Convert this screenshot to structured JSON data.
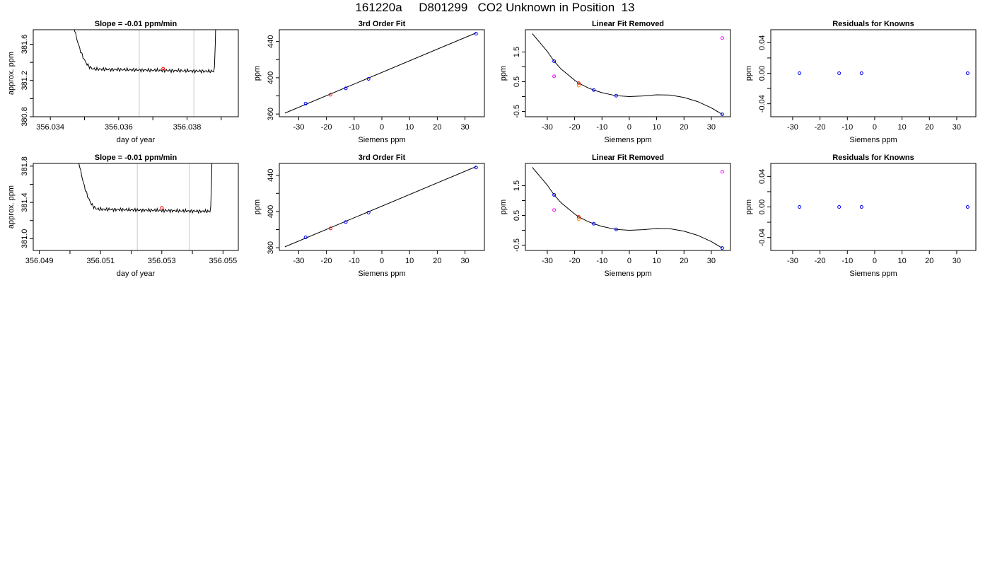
{
  "page_title": "161220a     D801299   CO2 Unknown in Position  13",
  "colors": {
    "trace": "#000000",
    "selected_point": "#ff0000",
    "fit_point": "#0000ff",
    "extra_a": "#ff00ff",
    "extra_b": "#ff8c00",
    "marker_line": "#c8c8c8"
  },
  "chart_data": [
    {
      "id": "r1-trace",
      "type": "line",
      "title": "Slope =  -0.01  ppm/min",
      "xlabel": "day of year",
      "ylabel": "approx. ppm",
      "xlim": [
        356.0335,
        356.0395
      ],
      "ylim": [
        380.8,
        381.76
      ],
      "xticks": [
        356.034,
        356.035,
        356.036,
        356.037,
        356.038,
        356.039
      ],
      "xticklabels": [
        "356.034",
        "",
        "356.036",
        "",
        "356.038",
        ""
      ],
      "yticks": [
        380.8,
        381.0,
        381.2,
        381.4,
        381.6
      ],
      "yticklabels": [
        "380.8",
        "",
        "381.2",
        "",
        "381.6"
      ],
      "level": 381.33,
      "trace_start": 356.03455,
      "trace_end": 356.03885,
      "vlines": [
        356.0366,
        356.0382
      ],
      "point": {
        "x": 356.0373,
        "y": 381.33
      }
    },
    {
      "id": "r1-fit",
      "type": "scatter",
      "title": "3rd Order Fit",
      "xlabel": "Siemens ppm",
      "ylabel": "ppm",
      "xlim": [
        -37,
        37
      ],
      "ylim": [
        357,
        453
      ],
      "xticks": [
        -30,
        -20,
        -10,
        0,
        10,
        20,
        30
      ],
      "xticklabels": [
        "-30",
        "-20",
        "-10",
        "0",
        "10",
        "20",
        "30"
      ],
      "yticks": [
        360,
        380,
        400,
        420,
        440
      ],
      "yticklabels": [
        "360",
        "",
        "400",
        "",
        "440"
      ],
      "line": [
        [
          -35,
          361.0
        ],
        [
          34,
          449.5
        ]
      ],
      "points": [
        {
          "x": -27.5,
          "y": 371.5,
          "c": "fit_point"
        },
        {
          "x": -18.5,
          "y": 381.3,
          "c": "selected_point"
        },
        {
          "x": -13.0,
          "y": 388.3,
          "c": "fit_point"
        },
        {
          "x": -4.8,
          "y": 398.8,
          "c": "fit_point"
        },
        {
          "x": 34.0,
          "y": 448.5,
          "c": "fit_point"
        }
      ]
    },
    {
      "id": "r1-lin",
      "type": "scatter",
      "title": "Linear Fit Removed",
      "xlabel": "Siemens ppm",
      "ylabel": "ppm",
      "xlim": [
        -38,
        37
      ],
      "ylim": [
        -0.68,
        2.25
      ],
      "xticks": [
        -30,
        -20,
        -10,
        0,
        10,
        20,
        30
      ],
      "xticklabels": [
        "-30",
        "-20",
        "-10",
        "0",
        "10",
        "20",
        "30"
      ],
      "yticks": [
        -0.5,
        0.0,
        0.5,
        1.0,
        1.5
      ],
      "yticklabels": [
        "-0.5",
        "",
        "0.5",
        "",
        "1.5"
      ],
      "curve": [
        [
          -35.5,
          2.12
        ],
        [
          -30,
          1.52
        ],
        [
          -27.5,
          1.19
        ],
        [
          -25,
          0.93
        ],
        [
          -20,
          0.55
        ],
        [
          -18.5,
          0.45
        ],
        [
          -15,
          0.29
        ],
        [
          -13,
          0.22
        ],
        [
          -10,
          0.13
        ],
        [
          -5,
          0.03
        ],
        [
          0,
          0.0
        ],
        [
          5,
          0.02
        ],
        [
          10,
          0.06
        ],
        [
          15,
          0.05
        ],
        [
          20,
          -0.03
        ],
        [
          25,
          -0.17
        ],
        [
          30,
          -0.38
        ],
        [
          34,
          -0.6
        ]
      ],
      "points": [
        {
          "x": -27.5,
          "y": 1.19,
          "c": "fit_point"
        },
        {
          "x": -27.5,
          "y": 0.68,
          "c": "extra_a"
        },
        {
          "x": -18.5,
          "y": 0.45,
          "c": "selected_point"
        },
        {
          "x": -18.5,
          "y": 0.37,
          "c": "extra_b"
        },
        {
          "x": -13.0,
          "y": 0.22,
          "c": "fit_point"
        },
        {
          "x": -4.8,
          "y": 0.03,
          "c": "fit_point"
        },
        {
          "x": 34.0,
          "y": 1.97,
          "c": "extra_a"
        },
        {
          "x": 34.0,
          "y": -0.6,
          "c": "fit_point"
        }
      ]
    },
    {
      "id": "r1-res",
      "type": "scatter",
      "title": "Residuals for Knowns",
      "xlabel": "Siemens ppm",
      "ylabel": "ppm",
      "xlim": [
        -38,
        37
      ],
      "ylim": [
        -0.057,
        0.057
      ],
      "xticks": [
        -30,
        -20,
        -10,
        0,
        10,
        20,
        30
      ],
      "xticklabels": [
        "-30",
        "-20",
        "-10",
        "0",
        "10",
        "20",
        "30"
      ],
      "yticks": [
        -0.04,
        -0.02,
        0.0,
        0.02,
        0.04
      ],
      "yticklabels": [
        "-0.04",
        "",
        "0.00",
        "",
        "0.04"
      ],
      "points": [
        {
          "x": -27.5,
          "y": 0.0,
          "c": "fit_point"
        },
        {
          "x": -13.0,
          "y": 0.0,
          "c": "fit_point"
        },
        {
          "x": -4.8,
          "y": 0.0,
          "c": "fit_point"
        },
        {
          "x": 34.0,
          "y": 0.0,
          "c": "fit_point"
        }
      ]
    },
    {
      "id": "r2-trace",
      "type": "line",
      "title": "Slope =  -0.01  ppm/min",
      "xlabel": "day of year",
      "ylabel": "approx. ppm",
      "xlim": [
        356.0488,
        356.0555
      ],
      "ylim": [
        380.87,
        381.83
      ],
      "xticks": [
        356.049,
        356.05,
        356.051,
        356.052,
        356.053,
        356.054,
        356.055
      ],
      "xticklabels": [
        "356.049",
        "",
        "356.051",
        "",
        "356.053",
        "",
        "356.055"
      ],
      "yticks": [
        381.0,
        381.2,
        381.4,
        381.6,
        381.8
      ],
      "yticklabels": [
        "381.0",
        "",
        "381.4",
        "",
        "381.8"
      ],
      "level": 381.33,
      "trace_start": 356.05015,
      "trace_end": 356.05465,
      "vlines": [
        356.0522,
        356.0539
      ],
      "point": {
        "x": 356.053,
        "y": 381.34
      }
    },
    {
      "id": "r2-fit",
      "type": "scatter",
      "title": "3rd Order Fit",
      "xlabel": "Siemens ppm",
      "ylabel": "ppm",
      "xlim": [
        -37,
        37
      ],
      "ylim": [
        357,
        453
      ],
      "xticks": [
        -30,
        -20,
        -10,
        0,
        10,
        20,
        30
      ],
      "xticklabels": [
        "-30",
        "-20",
        "-10",
        "0",
        "10",
        "20",
        "30"
      ],
      "yticks": [
        360,
        380,
        400,
        420,
        440
      ],
      "yticklabels": [
        "360",
        "",
        "400",
        "",
        "440"
      ],
      "line": [
        [
          -35,
          361.0
        ],
        [
          34,
          449.5
        ]
      ],
      "points": [
        {
          "x": -27.5,
          "y": 371.5,
          "c": "fit_point"
        },
        {
          "x": -18.5,
          "y": 381.3,
          "c": "selected_point"
        },
        {
          "x": -13.0,
          "y": 388.3,
          "c": "fit_point"
        },
        {
          "x": -4.8,
          "y": 398.8,
          "c": "fit_point"
        },
        {
          "x": 34.0,
          "y": 448.5,
          "c": "fit_point"
        }
      ]
    },
    {
      "id": "r2-lin",
      "type": "scatter",
      "title": "Linear Fit Removed",
      "xlabel": "Siemens ppm",
      "ylabel": "ppm",
      "xlim": [
        -38,
        37
      ],
      "ylim": [
        -0.68,
        2.25
      ],
      "xticks": [
        -30,
        -20,
        -10,
        0,
        10,
        20,
        30
      ],
      "xticklabels": [
        "-30",
        "-20",
        "-10",
        "0",
        "10",
        "20",
        "30"
      ],
      "yticks": [
        -0.5,
        0.0,
        0.5,
        1.0,
        1.5
      ],
      "yticklabels": [
        "-0.5",
        "",
        "0.5",
        "",
        "1.5"
      ],
      "curve": [
        [
          -35.5,
          2.12
        ],
        [
          -30,
          1.52
        ],
        [
          -27.5,
          1.19
        ],
        [
          -25,
          0.93
        ],
        [
          -20,
          0.55
        ],
        [
          -18.5,
          0.45
        ],
        [
          -15,
          0.29
        ],
        [
          -13,
          0.22
        ],
        [
          -10,
          0.13
        ],
        [
          -5,
          0.03
        ],
        [
          0,
          0.0
        ],
        [
          5,
          0.02
        ],
        [
          10,
          0.06
        ],
        [
          15,
          0.05
        ],
        [
          20,
          -0.03
        ],
        [
          25,
          -0.17
        ],
        [
          30,
          -0.38
        ],
        [
          34,
          -0.6
        ]
      ],
      "points": [
        {
          "x": -27.5,
          "y": 1.19,
          "c": "fit_point"
        },
        {
          "x": -27.5,
          "y": 0.68,
          "c": "extra_a"
        },
        {
          "x": -18.5,
          "y": 0.45,
          "c": "selected_point"
        },
        {
          "x": -18.5,
          "y": 0.37,
          "c": "extra_b"
        },
        {
          "x": -13.0,
          "y": 0.22,
          "c": "fit_point"
        },
        {
          "x": -4.8,
          "y": 0.03,
          "c": "fit_point"
        },
        {
          "x": 34.0,
          "y": 1.97,
          "c": "extra_a"
        },
        {
          "x": 34.0,
          "y": -0.6,
          "c": "fit_point"
        }
      ]
    },
    {
      "id": "r2-res",
      "type": "scatter",
      "title": "Residuals for Knowns",
      "xlabel": "Siemens ppm",
      "ylabel": "ppm",
      "xlim": [
        -38,
        37
      ],
      "ylim": [
        -0.057,
        0.057
      ],
      "xticks": [
        -30,
        -20,
        -10,
        0,
        10,
        20,
        30
      ],
      "xticklabels": [
        "-30",
        "-20",
        "-10",
        "0",
        "10",
        "20",
        "30"
      ],
      "yticks": [
        -0.04,
        -0.02,
        0.0,
        0.02,
        0.04
      ],
      "yticklabels": [
        "-0.04",
        "",
        "0.00",
        "",
        "0.04"
      ],
      "points": [
        {
          "x": -27.5,
          "y": 0.0,
          "c": "fit_point"
        },
        {
          "x": -13.0,
          "y": 0.0,
          "c": "fit_point"
        },
        {
          "x": -4.8,
          "y": 0.0,
          "c": "fit_point"
        },
        {
          "x": 34.0,
          "y": 0.0,
          "c": "fit_point"
        }
      ]
    }
  ]
}
